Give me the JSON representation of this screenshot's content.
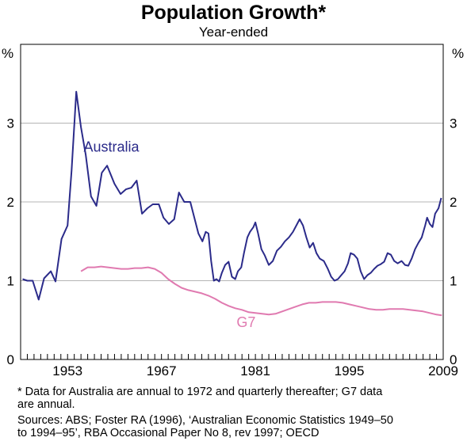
{
  "chart_data": {
    "type": "line",
    "title": "Population Growth*",
    "subtitle": "Year-ended",
    "ylabel_left": "%",
    "ylabel_right": "%",
    "ylim": [
      0,
      4
    ],
    "xlim": [
      1946,
      2009
    ],
    "yticks": [
      0,
      1,
      2,
      3
    ],
    "xtick_labels": [
      {
        "year": 1953,
        "label": "1953"
      },
      {
        "year": 1967,
        "label": "1967"
      },
      {
        "year": 1981,
        "label": "1981"
      },
      {
        "year": 1995,
        "label": "1995"
      },
      {
        "year": 2009,
        "label": "2009"
      }
    ],
    "grid": true,
    "series": [
      {
        "name": "Australia",
        "color": "#2b2b8a",
        "points": [
          [
            1946.3,
            1.02
          ],
          [
            1947,
            1.0
          ],
          [
            1947.8,
            1.0
          ],
          [
            1948.7,
            0.76
          ],
          [
            1949.5,
            1.03
          ],
          [
            1950.5,
            1.12
          ],
          [
            1951.2,
            0.99
          ],
          [
            1952.1,
            1.53
          ],
          [
            1953.0,
            1.7
          ],
          [
            1953.6,
            2.4
          ],
          [
            1954.3,
            3.4
          ],
          [
            1955.0,
            2.95
          ],
          [
            1955.7,
            2.6
          ],
          [
            1956.5,
            2.07
          ],
          [
            1957.3,
            1.95
          ],
          [
            1958.1,
            2.37
          ],
          [
            1958.9,
            2.46
          ],
          [
            1960.0,
            2.23
          ],
          [
            1960.9,
            2.1
          ],
          [
            1961.7,
            2.16
          ],
          [
            1962.5,
            2.18
          ],
          [
            1963.3,
            2.27
          ],
          [
            1964.1,
            1.85
          ],
          [
            1964.9,
            1.92
          ],
          [
            1965.7,
            1.97
          ],
          [
            1966.6,
            1.97
          ],
          [
            1967.3,
            1.8
          ],
          [
            1968.1,
            1.72
          ],
          [
            1968.9,
            1.78
          ],
          [
            1969.6,
            2.12
          ],
          [
            1970.4,
            2.0
          ],
          [
            1971.3,
            2.0
          ],
          [
            1971.9,
            1.8
          ],
          [
            1972.5,
            1.6
          ],
          [
            1973.1,
            1.5
          ],
          [
            1973.6,
            1.62
          ],
          [
            1974.0,
            1.6
          ],
          [
            1974.4,
            1.25
          ],
          [
            1974.8,
            1.0
          ],
          [
            1975.2,
            1.02
          ],
          [
            1975.6,
            0.99
          ],
          [
            1976.0,
            1.1
          ],
          [
            1976.5,
            1.2
          ],
          [
            1977.0,
            1.24
          ],
          [
            1977.5,
            1.05
          ],
          [
            1978.0,
            1.02
          ],
          [
            1978.4,
            1.12
          ],
          [
            1978.9,
            1.17
          ],
          [
            1979.3,
            1.35
          ],
          [
            1979.8,
            1.55
          ],
          [
            1980.2,
            1.62
          ],
          [
            1980.7,
            1.68
          ],
          [
            1981.0,
            1.74
          ],
          [
            1981.4,
            1.6
          ],
          [
            1981.9,
            1.4
          ],
          [
            1982.4,
            1.32
          ],
          [
            1983.0,
            1.2
          ],
          [
            1983.6,
            1.25
          ],
          [
            1984.2,
            1.38
          ],
          [
            1984.8,
            1.43
          ],
          [
            1985.4,
            1.5
          ],
          [
            1986.0,
            1.55
          ],
          [
            1986.6,
            1.62
          ],
          [
            1987.1,
            1.7
          ],
          [
            1987.6,
            1.78
          ],
          [
            1988.1,
            1.7
          ],
          [
            1988.6,
            1.55
          ],
          [
            1989.1,
            1.42
          ],
          [
            1989.6,
            1.48
          ],
          [
            1990.1,
            1.35
          ],
          [
            1990.6,
            1.28
          ],
          [
            1991.2,
            1.25
          ],
          [
            1991.8,
            1.15
          ],
          [
            1992.3,
            1.05
          ],
          [
            1992.8,
            1.0
          ],
          [
            1993.3,
            1.02
          ],
          [
            1993.8,
            1.07
          ],
          [
            1994.3,
            1.12
          ],
          [
            1994.8,
            1.22
          ],
          [
            1995.2,
            1.35
          ],
          [
            1995.7,
            1.33
          ],
          [
            1996.2,
            1.28
          ],
          [
            1996.7,
            1.12
          ],
          [
            1997.2,
            1.02
          ],
          [
            1997.7,
            1.07
          ],
          [
            1998.2,
            1.1
          ],
          [
            1998.7,
            1.15
          ],
          [
            1999.2,
            1.19
          ],
          [
            1999.7,
            1.21
          ],
          [
            2000.2,
            1.24
          ],
          [
            2000.7,
            1.35
          ],
          [
            2001.2,
            1.33
          ],
          [
            2001.7,
            1.25
          ],
          [
            2002.2,
            1.22
          ],
          [
            2002.8,
            1.25
          ],
          [
            2003.3,
            1.2
          ],
          [
            2003.8,
            1.19
          ],
          [
            2004.3,
            1.28
          ],
          [
            2004.8,
            1.4
          ],
          [
            2005.3,
            1.48
          ],
          [
            2005.8,
            1.55
          ],
          [
            2006.3,
            1.7
          ],
          [
            2006.6,
            1.8
          ],
          [
            2007.0,
            1.72
          ],
          [
            2007.4,
            1.68
          ],
          [
            2007.8,
            1.85
          ],
          [
            2008.3,
            1.92
          ],
          [
            2008.7,
            2.05
          ]
        ]
      },
      {
        "name": "G7",
        "color": "#e07ab0",
        "points": [
          [
            1955.0,
            1.12
          ],
          [
            1956,
            1.17
          ],
          [
            1957,
            1.17
          ],
          [
            1958,
            1.18
          ],
          [
            1959,
            1.17
          ],
          [
            1960,
            1.16
          ],
          [
            1961,
            1.15
          ],
          [
            1962,
            1.15
          ],
          [
            1963,
            1.16
          ],
          [
            1964,
            1.16
          ],
          [
            1965,
            1.17
          ],
          [
            1966,
            1.15
          ],
          [
            1967,
            1.1
          ],
          [
            1968,
            1.02
          ],
          [
            1969,
            0.96
          ],
          [
            1970,
            0.91
          ],
          [
            1971,
            0.88
          ],
          [
            1972,
            0.86
          ],
          [
            1973,
            0.84
          ],
          [
            1974,
            0.81
          ],
          [
            1975,
            0.77
          ],
          [
            1976,
            0.72
          ],
          [
            1977,
            0.68
          ],
          [
            1978,
            0.65
          ],
          [
            1979,
            0.63
          ],
          [
            1980,
            0.6
          ],
          [
            1981,
            0.59
          ],
          [
            1982,
            0.58
          ],
          [
            1983,
            0.57
          ],
          [
            1984,
            0.58
          ],
          [
            1985,
            0.61
          ],
          [
            1986,
            0.64
          ],
          [
            1987,
            0.67
          ],
          [
            1988,
            0.7
          ],
          [
            1989,
            0.72
          ],
          [
            1990,
            0.72
          ],
          [
            1991,
            0.73
          ],
          [
            1992,
            0.73
          ],
          [
            1993,
            0.73
          ],
          [
            1994,
            0.72
          ],
          [
            1995,
            0.7
          ],
          [
            1996,
            0.68
          ],
          [
            1997,
            0.66
          ],
          [
            1998,
            0.64
          ],
          [
            1999,
            0.63
          ],
          [
            2000,
            0.63
          ],
          [
            2001,
            0.64
          ],
          [
            2002,
            0.64
          ],
          [
            2003,
            0.64
          ],
          [
            2004,
            0.63
          ],
          [
            2005,
            0.62
          ],
          [
            2006,
            0.61
          ],
          [
            2007,
            0.59
          ],
          [
            2008,
            0.57
          ],
          [
            2008.8,
            0.56
          ]
        ]
      }
    ],
    "annotations": [
      {
        "text": "Australia",
        "series": 0,
        "x": 1955.4,
        "y": 2.64
      },
      {
        "text": "G7",
        "series": 1,
        "x": 1978.2,
        "y": 0.41
      }
    ]
  },
  "footnotes": [
    "*  Data for Australia are annual to 1972 and quarterly thereafter; G7 data",
    "    are annual.",
    "Sources: ABS; Foster RA (1996), ‘Australian Economic Statistics 1949–50",
    "    to 1994–95’, RBA Occasional Paper No 8, rev 1997; OECD"
  ]
}
